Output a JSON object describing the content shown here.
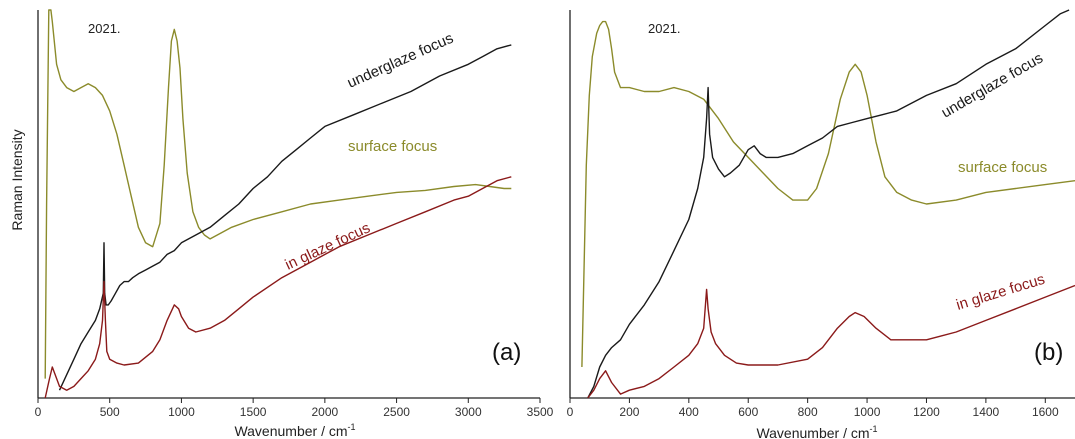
{
  "colors": {
    "black": "#1a1a1a",
    "olive": "#8b8b2b",
    "maroon": "#8b1a1a"
  },
  "ylabel": "Raman Intensity",
  "xlabel_base": "Wavenumber / cm",
  "xlabel_exp": "-1",
  "chart_data": [
    {
      "type": "line",
      "panel": "(a)",
      "note": "2021.",
      "xlim": [
        0,
        3500
      ],
      "ylim": [
        0,
        100
      ],
      "xticks": [
        0,
        500,
        1000,
        1500,
        2000,
        2500,
        3000,
        3500
      ],
      "labels": [
        "underglaze focus",
        "surface focus",
        "in glaze focus"
      ],
      "series": [
        {
          "color": "olive",
          "points": [
            [
              50,
              5
            ],
            [
              60,
              50
            ],
            [
              75,
              100
            ],
            [
              90,
              100
            ],
            [
              100,
              97
            ],
            [
              130,
              86
            ],
            [
              160,
              82
            ],
            [
              200,
              80
            ],
            [
              250,
              79
            ],
            [
              300,
              80
            ],
            [
              350,
              81
            ],
            [
              400,
              80
            ],
            [
              450,
              78
            ],
            [
              500,
              74
            ],
            [
              550,
              68
            ],
            [
              600,
              60
            ],
            [
              650,
              52
            ],
            [
              700,
              44
            ],
            [
              750,
              40
            ],
            [
              800,
              39
            ],
            [
              850,
              45
            ],
            [
              880,
              60
            ],
            [
              910,
              80
            ],
            [
              930,
              92
            ],
            [
              950,
              95
            ],
            [
              970,
              92
            ],
            [
              990,
              85
            ],
            [
              1010,
              72
            ],
            [
              1040,
              58
            ],
            [
              1080,
              48
            ],
            [
              1120,
              44
            ],
            [
              1160,
              42
            ],
            [
              1200,
              41
            ],
            [
              1250,
              42
            ],
            [
              1350,
              44
            ],
            [
              1500,
              46
            ],
            [
              1700,
              48
            ],
            [
              1900,
              50
            ],
            [
              2100,
              51
            ],
            [
              2300,
              52
            ],
            [
              2500,
              53
            ],
            [
              2700,
              53.5
            ],
            [
              2900,
              54.5
            ],
            [
              3050,
              55
            ],
            [
              3150,
              54.5
            ],
            [
              3250,
              54
            ],
            [
              3300,
              54
            ]
          ]
        },
        {
          "color": "black",
          "points": [
            [
              150,
              2
            ],
            [
              200,
              6
            ],
            [
              250,
              10
            ],
            [
              300,
              14
            ],
            [
              350,
              17
            ],
            [
              400,
              20
            ],
            [
              430,
              23
            ],
            [
              455,
              27
            ],
            [
              460,
              40
            ],
            [
              465,
              27
            ],
            [
              475,
              24
            ],
            [
              490,
              24
            ],
            [
              510,
              25
            ],
            [
              540,
              27
            ],
            [
              570,
              29
            ],
            [
              600,
              30
            ],
            [
              630,
              30
            ],
            [
              660,
              31
            ],
            [
              700,
              32
            ],
            [
              750,
              33
            ],
            [
              800,
              34
            ],
            [
              850,
              35
            ],
            [
              900,
              37
            ],
            [
              950,
              38
            ],
            [
              1000,
              40
            ],
            [
              1100,
              42
            ],
            [
              1200,
              44
            ],
            [
              1300,
              47
            ],
            [
              1400,
              50
            ],
            [
              1500,
              54
            ],
            [
              1600,
              57
            ],
            [
              1700,
              61
            ],
            [
              1800,
              64
            ],
            [
              1900,
              67
            ],
            [
              2000,
              70
            ],
            [
              2200,
              73
            ],
            [
              2400,
              76
            ],
            [
              2600,
              79
            ],
            [
              2800,
              83
            ],
            [
              3000,
              86
            ],
            [
              3100,
              88
            ],
            [
              3200,
              90
            ],
            [
              3300,
              91
            ]
          ]
        },
        {
          "color": "maroon",
          "points": [
            [
              50,
              0
            ],
            [
              80,
              5
            ],
            [
              100,
              8
            ],
            [
              120,
              6
            ],
            [
              150,
              3
            ],
            [
              200,
              2
            ],
            [
              250,
              3
            ],
            [
              300,
              5
            ],
            [
              350,
              7
            ],
            [
              400,
              10
            ],
            [
              430,
              14
            ],
            [
              450,
              20
            ],
            [
              460,
              30
            ],
            [
              470,
              20
            ],
            [
              480,
              12
            ],
            [
              500,
              10
            ],
            [
              550,
              9
            ],
            [
              600,
              8.5
            ],
            [
              700,
              9
            ],
            [
              800,
              12
            ],
            [
              850,
              15
            ],
            [
              900,
              20
            ],
            [
              950,
              24
            ],
            [
              980,
              23
            ],
            [
              1000,
              21
            ],
            [
              1050,
              18
            ],
            [
              1100,
              17
            ],
            [
              1200,
              18
            ],
            [
              1300,
              20
            ],
            [
              1400,
              23
            ],
            [
              1500,
              26
            ],
            [
              1700,
              31
            ],
            [
              1900,
              35
            ],
            [
              2100,
              39
            ],
            [
              2300,
              42
            ],
            [
              2500,
              45
            ],
            [
              2700,
              48
            ],
            [
              2900,
              51
            ],
            [
              3000,
              52
            ],
            [
              3100,
              54
            ],
            [
              3200,
              56
            ],
            [
              3300,
              57
            ]
          ]
        }
      ]
    },
    {
      "type": "line",
      "panel": "(b)",
      "note": "2021.",
      "xlim": [
        0,
        1700
      ],
      "ylim": [
        0,
        100
      ],
      "xticks": [
        0,
        200,
        400,
        600,
        800,
        1000,
        1200,
        1400,
        1600
      ],
      "labels": [
        "underglaze focus",
        "surface focus",
        "in glaze focus"
      ],
      "series": [
        {
          "color": "olive",
          "points": [
            [
              40,
              8
            ],
            [
              55,
              60
            ],
            [
              65,
              78
            ],
            [
              75,
              88
            ],
            [
              90,
              94
            ],
            [
              100,
              96
            ],
            [
              110,
              97
            ],
            [
              120,
              97
            ],
            [
              130,
              95
            ],
            [
              140,
              90
            ],
            [
              150,
              84
            ],
            [
              170,
              80
            ],
            [
              200,
              80
            ],
            [
              250,
              79
            ],
            [
              300,
              79
            ],
            [
              350,
              80
            ],
            [
              400,
              79
            ],
            [
              450,
              77
            ],
            [
              500,
              72
            ],
            [
              550,
              66
            ],
            [
              600,
              62
            ],
            [
              650,
              58
            ],
            [
              700,
              54
            ],
            [
              750,
              51
            ],
            [
              800,
              51
            ],
            [
              830,
              54
            ],
            [
              870,
              63
            ],
            [
              910,
              77
            ],
            [
              940,
              84
            ],
            [
              960,
              86
            ],
            [
              980,
              84
            ],
            [
              1000,
              78
            ],
            [
              1030,
              66
            ],
            [
              1060,
              57
            ],
            [
              1100,
              53
            ],
            [
              1150,
              51
            ],
            [
              1200,
              50
            ],
            [
              1300,
              51
            ],
            [
              1400,
              53
            ],
            [
              1500,
              54
            ],
            [
              1600,
              55
            ],
            [
              1700,
              56
            ]
          ]
        },
        {
          "color": "black",
          "points": [
            [
              60,
              0
            ],
            [
              80,
              3
            ],
            [
              100,
              8
            ],
            [
              120,
              11
            ],
            [
              140,
              13
            ],
            [
              170,
              15
            ],
            [
              200,
              19
            ],
            [
              250,
              24
            ],
            [
              300,
              30
            ],
            [
              350,
              38
            ],
            [
              400,
              46
            ],
            [
              430,
              54
            ],
            [
              450,
              62
            ],
            [
              460,
              72
            ],
            [
              465,
              80
            ],
            [
              470,
              68
            ],
            [
              480,
              62
            ],
            [
              500,
              59
            ],
            [
              520,
              57
            ],
            [
              540,
              58
            ],
            [
              570,
              60
            ],
            [
              600,
              64
            ],
            [
              620,
              65
            ],
            [
              640,
              63
            ],
            [
              660,
              62
            ],
            [
              700,
              62
            ],
            [
              750,
              63
            ],
            [
              800,
              65
            ],
            [
              850,
              67
            ],
            [
              900,
              70
            ],
            [
              950,
              71
            ],
            [
              1000,
              72
            ],
            [
              1050,
              73
            ],
            [
              1100,
              74
            ],
            [
              1200,
              78
            ],
            [
              1300,
              81
            ],
            [
              1400,
              86
            ],
            [
              1500,
              90
            ],
            [
              1600,
              96
            ],
            [
              1650,
              99
            ],
            [
              1680,
              100
            ]
          ]
        },
        {
          "color": "maroon",
          "points": [
            [
              60,
              0
            ],
            [
              80,
              2
            ],
            [
              100,
              5
            ],
            [
              120,
              7
            ],
            [
              140,
              4
            ],
            [
              170,
              1
            ],
            [
              200,
              2
            ],
            [
              250,
              3
            ],
            [
              300,
              5
            ],
            [
              350,
              8
            ],
            [
              400,
              11
            ],
            [
              430,
              14
            ],
            [
              450,
              18
            ],
            [
              460,
              28
            ],
            [
              465,
              23
            ],
            [
              475,
              17
            ],
            [
              490,
              14
            ],
            [
              520,
              11
            ],
            [
              560,
              9
            ],
            [
              600,
              8.5
            ],
            [
              700,
              8.5
            ],
            [
              800,
              10
            ],
            [
              850,
              13
            ],
            [
              900,
              18
            ],
            [
              940,
              21
            ],
            [
              960,
              22
            ],
            [
              990,
              21
            ],
            [
              1030,
              18
            ],
            [
              1080,
              15
            ],
            [
              1150,
              15
            ],
            [
              1200,
              15
            ],
            [
              1250,
              16
            ],
            [
              1300,
              17
            ],
            [
              1400,
              20
            ],
            [
              1500,
              23
            ],
            [
              1600,
              26
            ],
            [
              1700,
              29
            ]
          ]
        }
      ]
    }
  ]
}
